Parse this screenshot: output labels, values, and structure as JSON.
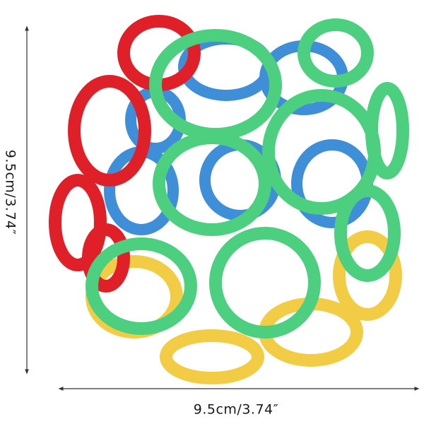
{
  "dimensions": {
    "height_label": "9.5cm/3.74″",
    "width_label": "9.5cm/3.74″"
  }
}
